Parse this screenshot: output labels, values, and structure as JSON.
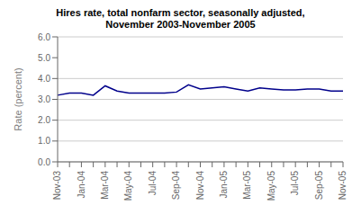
{
  "chart_data": {
    "type": "line",
    "title": "Hires rate, total nonfarm sector, seasonally adjusted,\nNovember 2003-November 2005",
    "ylabel": "Rate (percent)",
    "categories": [
      "Nov-03",
      null,
      "Jan-04",
      null,
      "Mar-04",
      null,
      "May-04",
      null,
      "Jul-04",
      null,
      "Sep-04",
      null,
      "Nov-04",
      null,
      "Jan-05",
      null,
      "Mar-05",
      null,
      "May-05",
      null,
      "Jul-05",
      null,
      "Sep-05",
      null,
      "Nov-05"
    ],
    "values": [
      3.2,
      3.3,
      3.3,
      3.2,
      3.65,
      3.4,
      3.3,
      3.3,
      3.3,
      3.3,
      3.35,
      3.7,
      3.5,
      3.55,
      3.6,
      3.5,
      3.4,
      3.55,
      3.5,
      3.45,
      3.45,
      3.5,
      3.5,
      3.4,
      3.4
    ],
    "color": "#00008B",
    "ylim": [
      0.0,
      6.0
    ],
    "yticks": [
      {
        "value": 0.0,
        "label": "0.0"
      },
      {
        "value": 1.0,
        "label": "1.0"
      },
      {
        "value": 2.0,
        "label": "2.0"
      },
      {
        "value": 3.0,
        "label": "3.0"
      },
      {
        "value": 4.0,
        "label": "4.0"
      },
      {
        "value": 5.0,
        "label": "5.0"
      },
      {
        "value": 6.0,
        "label": "6.0"
      }
    ],
    "grid": true
  }
}
